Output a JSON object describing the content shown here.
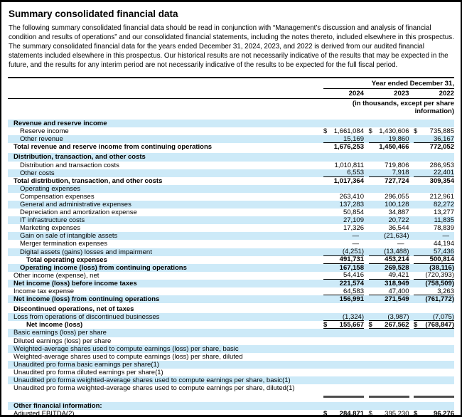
{
  "page": {
    "title": "Summary consolidated financial data",
    "intro": "The following summary consolidated financial data should be read in conjunction with “Management’s discussion and analysis of financial condition and results of operations” and our consolidated financial statements, including the notes thereto, included elsewhere in this prospectus. The summary consolidated financial data for the years ended December 31, 2024, 2023, and 2022 is derived from our audited financial statements included elsewhere in this prospectus. Our historical results are not necessarily indicative of the results that may be expected in the future, and the results for any interim period are not necessarily indicative of the results to be expected for the full fiscal period."
  },
  "table": {
    "period_header": "Year ended December 31,",
    "columns": [
      "2024",
      "2023",
      "2022"
    ],
    "units_note": "(in thousands, except per share information)",
    "colors": {
      "stripe": "#cdeaf8",
      "bar": "#4d4d4d",
      "rule": "#000000"
    },
    "rows": [
      {
        "label": "Revenue and reserve income",
        "indent": 0,
        "bold": true,
        "values": []
      },
      {
        "label": "Reserve income",
        "indent": 1,
        "dollar": true,
        "values": [
          "1,661,084",
          "1,430,606",
          "735,885"
        ]
      },
      {
        "label": "Other revenue",
        "indent": 1,
        "underline": true,
        "values": [
          "15,169",
          "19,860",
          "36,167"
        ]
      },
      {
        "label": "Total revenue and reserve income from continuing operations",
        "indent": 0,
        "bold": true,
        "values": [
          "1,676,253",
          "1,450,466",
          "772,052"
        ]
      },
      {
        "label": "Distribution, transaction, and other costs",
        "indent": 0,
        "bold": true,
        "gap": true,
        "values": []
      },
      {
        "label": "Distribution and transaction costs",
        "indent": 1,
        "values": [
          "1,010,811",
          "719,806",
          "286,953"
        ]
      },
      {
        "label": "Other costs",
        "indent": 1,
        "underline": true,
        "values": [
          "6,553",
          "7,918",
          "22,401"
        ]
      },
      {
        "label": "Total distribution, transaction, and other costs",
        "indent": 0,
        "bold": true,
        "values": [
          "1,017,364",
          "727,724",
          "309,354"
        ]
      },
      {
        "label": "Operating expenses",
        "indent": 1,
        "values": []
      },
      {
        "label": "Compensation expenses",
        "indent": 1,
        "values": [
          "263,410",
          "296,055",
          "212,961"
        ]
      },
      {
        "label": "General and administrative expenses",
        "indent": 1,
        "values": [
          "137,283",
          "100,128",
          "82,272"
        ]
      },
      {
        "label": "Depreciation and amortization expense",
        "indent": 1,
        "values": [
          "50,854",
          "34,887",
          "13,277"
        ]
      },
      {
        "label": "IT infrastructure costs",
        "indent": 1,
        "values": [
          "27,109",
          "20,722",
          "11,835"
        ]
      },
      {
        "label": "Marketing expenses",
        "indent": 1,
        "values": [
          "17,326",
          "36,544",
          "78,839"
        ]
      },
      {
        "label": "Gain on sale of intangible assets",
        "indent": 1,
        "values": [
          "—",
          "(21,634)",
          "—"
        ]
      },
      {
        "label": "Merger termination expenses",
        "indent": 1,
        "values": [
          "—",
          "—",
          "44,194"
        ]
      },
      {
        "label": "Digital assets (gains) losses and impairment",
        "indent": 1,
        "underline": true,
        "values": [
          "(4,251)",
          "(13,488)",
          "57,436"
        ]
      },
      {
        "label": "Total operating expenses",
        "indent": 2,
        "bold": true,
        "underline": true,
        "values": [
          "491,731",
          "453,214",
          "500,814"
        ]
      },
      {
        "label": "Operating income (loss) from continuing operations",
        "indent": 1,
        "bold": true,
        "values": [
          "167,158",
          "269,528",
          "(38,116)"
        ]
      },
      {
        "label": "Other income (expense), net",
        "indent": 0,
        "underline": true,
        "values": [
          "54,416",
          "49,421",
          "(720,393)"
        ]
      },
      {
        "label": "Net income (loss) before income taxes",
        "indent": 0,
        "bold": true,
        "values": [
          "221,574",
          "318,949",
          "(758,509)"
        ]
      },
      {
        "label": "Income tax expense",
        "indent": 0,
        "underline": true,
        "values": [
          "64,583",
          "47,400",
          "3,263"
        ]
      },
      {
        "label": "Net income (loss) from continuing operations",
        "indent": 0,
        "bold": true,
        "values": [
          "156,991",
          "271,549",
          "(761,772)"
        ]
      },
      {
        "label": "Discontinued operations, net of taxes",
        "indent": 0,
        "bold": true,
        "gap": true,
        "values": []
      },
      {
        "label": "Loss from operations of discontinued businesses",
        "indent": 0,
        "underline": true,
        "values": [
          "(1,324)",
          "(3,987)",
          "(7,075)"
        ]
      },
      {
        "label": "Net income (loss)",
        "indent": 2,
        "bold": true,
        "dollar": true,
        "underline": true,
        "values": [
          "155,667",
          "267,562",
          "(768,847)"
        ]
      },
      {
        "label": "Basic earnings (loss) per share",
        "indent": 0,
        "values": []
      },
      {
        "label": "Diluted earnings (loss) per share",
        "indent": 0,
        "values": []
      },
      {
        "label": "Weighted-average shares used to compute earnings (loss) per share, basic",
        "indent": 0,
        "values": []
      },
      {
        "label": "Weighted-average shares used to compute earnings (loss) per share, diluted",
        "indent": 0,
        "values": []
      },
      {
        "label": "Unaudited pro forma basic earnings per share(1)",
        "indent": 0,
        "values": []
      },
      {
        "label": "Unaudited pro forma diluted earnings per share(1)",
        "indent": 0,
        "values": []
      },
      {
        "label": "Unaudited pro forma weighted-average shares used to compute earnings per share, basic(1)",
        "indent": 0,
        "values": []
      },
      {
        "label": "Unaudited pro forma weighted-average shares used to compute earnings per share, diluted(1)",
        "indent": 0,
        "values": []
      },
      {
        "kind": "bars"
      },
      {
        "label": "Other financial information:",
        "indent": 0,
        "bold": true,
        "gap": true,
        "values": []
      },
      {
        "label": "Adjusted EBITDA(2)",
        "indent": 0,
        "dollar": true,
        "full_rule": true,
        "value_bold": [
          true,
          false,
          true
        ],
        "values": [
          "284,871",
          "395,230",
          "96,276"
        ]
      }
    ]
  }
}
